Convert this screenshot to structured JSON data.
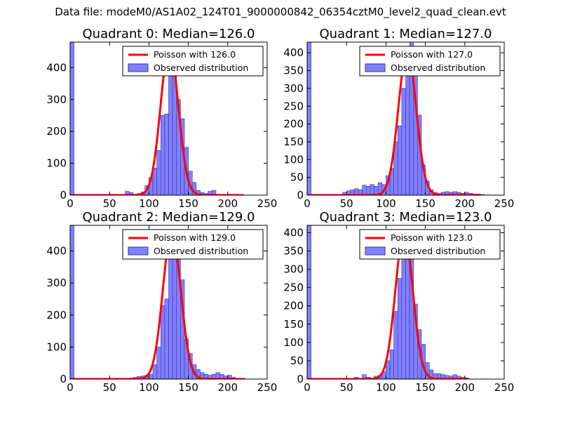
{
  "figure": {
    "suptitle": "Data file: modeM0/AS1A02_124T01_9000000842_06354cztM0_level2_quad_clean.evt"
  },
  "colors": {
    "bar_fill": "#8080ff",
    "bar_edge": "#3333aa",
    "poisson_line": "#ff0000",
    "axes": "#000000",
    "background": "#ffffff"
  },
  "chart_data": [
    {
      "type": "bar",
      "title": "Quadrant 0: Median=126.0",
      "xlim": [
        0,
        250
      ],
      "ylim": [
        0,
        480
      ],
      "xticks": [
        "0",
        "50",
        "100",
        "150",
        "200",
        "250"
      ],
      "yticks": [
        "0",
        "100",
        "200",
        "300",
        "400"
      ],
      "bin_width": 5,
      "legend": {
        "line_label": "Poisson with 126.0",
        "bar_label": "Observed distribution",
        "loc": "upper right"
      },
      "poisson": {
        "mean": 126.0,
        "peak": 465,
        "range": [
          0,
          220
        ]
      },
      "bins": [
        {
          "x": 0,
          "v": 480
        },
        {
          "x": 70,
          "v": 12
        },
        {
          "x": 75,
          "v": 8
        },
        {
          "x": 85,
          "v": 5
        },
        {
          "x": 90,
          "v": 10
        },
        {
          "x": 95,
          "v": 30
        },
        {
          "x": 100,
          "v": 55
        },
        {
          "x": 105,
          "v": 85
        },
        {
          "x": 110,
          "v": 140
        },
        {
          "x": 115,
          "v": 250
        },
        {
          "x": 120,
          "v": 255
        },
        {
          "x": 125,
          "v": 460
        },
        {
          "x": 130,
          "v": 410
        },
        {
          "x": 135,
          "v": 300
        },
        {
          "x": 140,
          "v": 240
        },
        {
          "x": 145,
          "v": 150
        },
        {
          "x": 150,
          "v": 75
        },
        {
          "x": 155,
          "v": 40
        },
        {
          "x": 160,
          "v": 15
        },
        {
          "x": 165,
          "v": 8
        },
        {
          "x": 170,
          "v": 5
        },
        {
          "x": 175,
          "v": 12
        },
        {
          "x": 180,
          "v": 15
        },
        {
          "x": 185,
          "v": 3
        }
      ]
    },
    {
      "type": "bar",
      "title": "Quadrant 1: Median=127.0",
      "xlim": [
        0,
        250
      ],
      "ylim": [
        0,
        430
      ],
      "xticks": [
        "0",
        "50",
        "100",
        "150",
        "200",
        "250"
      ],
      "yticks": [
        "0",
        "50",
        "100",
        "150",
        "200",
        "250",
        "300",
        "350",
        "400"
      ],
      "bin_width": 5,
      "legend": {
        "line_label": "Poisson with 127.0",
        "bar_label": "Observed distribution",
        "loc": "upper right"
      },
      "poisson": {
        "mean": 127.0,
        "peak": 405,
        "range": [
          0,
          220
        ]
      },
      "bins": [
        {
          "x": 0,
          "v": 430
        },
        {
          "x": 45,
          "v": 8
        },
        {
          "x": 50,
          "v": 12
        },
        {
          "x": 55,
          "v": 15
        },
        {
          "x": 60,
          "v": 18
        },
        {
          "x": 65,
          "v": 15
        },
        {
          "x": 70,
          "v": 28
        },
        {
          "x": 75,
          "v": 25
        },
        {
          "x": 80,
          "v": 30
        },
        {
          "x": 85,
          "v": 25
        },
        {
          "x": 90,
          "v": 35
        },
        {
          "x": 95,
          "v": 30
        },
        {
          "x": 100,
          "v": 55
        },
        {
          "x": 105,
          "v": 75
        },
        {
          "x": 110,
          "v": 150
        },
        {
          "x": 115,
          "v": 195
        },
        {
          "x": 120,
          "v": 300
        },
        {
          "x": 125,
          "v": 385
        },
        {
          "x": 130,
          "v": 430
        },
        {
          "x": 135,
          "v": 355
        },
        {
          "x": 140,
          "v": 225
        },
        {
          "x": 145,
          "v": 85
        },
        {
          "x": 150,
          "v": 40
        },
        {
          "x": 155,
          "v": 15
        },
        {
          "x": 160,
          "v": 8
        },
        {
          "x": 165,
          "v": 5
        },
        {
          "x": 170,
          "v": 8
        },
        {
          "x": 175,
          "v": 10
        },
        {
          "x": 180,
          "v": 8
        },
        {
          "x": 185,
          "v": 10
        },
        {
          "x": 190,
          "v": 8
        },
        {
          "x": 195,
          "v": 5
        },
        {
          "x": 200,
          "v": 8
        },
        {
          "x": 205,
          "v": 5
        },
        {
          "x": 210,
          "v": 3
        },
        {
          "x": 215,
          "v": 3
        },
        {
          "x": 220,
          "v": 2
        }
      ]
    },
    {
      "type": "bar",
      "title": "Quadrant 2: Median=129.0",
      "xlim": [
        0,
        250
      ],
      "ylim": [
        0,
        480
      ],
      "xticks": [
        "0",
        "50",
        "100",
        "150",
        "200",
        "250"
      ],
      "yticks": [
        "0",
        "100",
        "200",
        "300",
        "400"
      ],
      "bin_width": 5,
      "legend": {
        "line_label": "Poisson with 129.0",
        "bar_label": "Observed distribution",
        "loc": "upper right"
      },
      "poisson": {
        "mean": 129.0,
        "peak": 460,
        "range": [
          0,
          222
        ]
      },
      "bins": [
        {
          "x": 0,
          "v": 480
        },
        {
          "x": 75,
          "v": 3
        },
        {
          "x": 80,
          "v": 5
        },
        {
          "x": 85,
          "v": 8
        },
        {
          "x": 90,
          "v": 10
        },
        {
          "x": 95,
          "v": 12
        },
        {
          "x": 100,
          "v": 15
        },
        {
          "x": 105,
          "v": 45
        },
        {
          "x": 110,
          "v": 100
        },
        {
          "x": 115,
          "v": 230
        },
        {
          "x": 120,
          "v": 250
        },
        {
          "x": 125,
          "v": 460
        },
        {
          "x": 130,
          "v": 440
        },
        {
          "x": 135,
          "v": 375
        },
        {
          "x": 140,
          "v": 310
        },
        {
          "x": 145,
          "v": 125
        },
        {
          "x": 150,
          "v": 80
        },
        {
          "x": 155,
          "v": 45
        },
        {
          "x": 160,
          "v": 30
        },
        {
          "x": 165,
          "v": 20
        },
        {
          "x": 170,
          "v": 15
        },
        {
          "x": 175,
          "v": 12
        },
        {
          "x": 180,
          "v": 15
        },
        {
          "x": 185,
          "v": 20
        },
        {
          "x": 190,
          "v": 15
        },
        {
          "x": 195,
          "v": 10
        },
        {
          "x": 200,
          "v": 12
        },
        {
          "x": 205,
          "v": 5
        }
      ]
    },
    {
      "type": "bar",
      "title": "Quadrant 3: Median=123.0",
      "xlim": [
        0,
        250
      ],
      "ylim": [
        0,
        420
      ],
      "xticks": [
        "0",
        "50",
        "100",
        "150",
        "200",
        "250"
      ],
      "yticks": [
        "0",
        "50",
        "100",
        "150",
        "200",
        "250",
        "300",
        "350",
        "400"
      ],
      "bin_width": 5,
      "legend": {
        "line_label": "Poisson with 123.0",
        "bar_label": "Observed distribution",
        "loc": "upper right"
      },
      "poisson": {
        "mean": 123.0,
        "peak": 400,
        "range": [
          0,
          205
        ]
      },
      "bins": [
        {
          "x": 0,
          "v": 420
        },
        {
          "x": 60,
          "v": 5
        },
        {
          "x": 70,
          "v": 12
        },
        {
          "x": 75,
          "v": 5
        },
        {
          "x": 85,
          "v": 8
        },
        {
          "x": 90,
          "v": 10
        },
        {
          "x": 95,
          "v": 20
        },
        {
          "x": 100,
          "v": 50
        },
        {
          "x": 105,
          "v": 80
        },
        {
          "x": 110,
          "v": 185
        },
        {
          "x": 115,
          "v": 275
        },
        {
          "x": 120,
          "v": 355
        },
        {
          "x": 125,
          "v": 400
        },
        {
          "x": 130,
          "v": 340
        },
        {
          "x": 135,
          "v": 205
        },
        {
          "x": 140,
          "v": 135
        },
        {
          "x": 145,
          "v": 95
        },
        {
          "x": 150,
          "v": 45
        },
        {
          "x": 155,
          "v": 25
        },
        {
          "x": 160,
          "v": 15
        },
        {
          "x": 165,
          "v": 15
        },
        {
          "x": 170,
          "v": 12
        },
        {
          "x": 175,
          "v": 10
        },
        {
          "x": 180,
          "v": 8
        },
        {
          "x": 185,
          "v": 12
        },
        {
          "x": 190,
          "v": 8
        },
        {
          "x": 195,
          "v": 5
        },
        {
          "x": 200,
          "v": 3
        }
      ]
    }
  ]
}
